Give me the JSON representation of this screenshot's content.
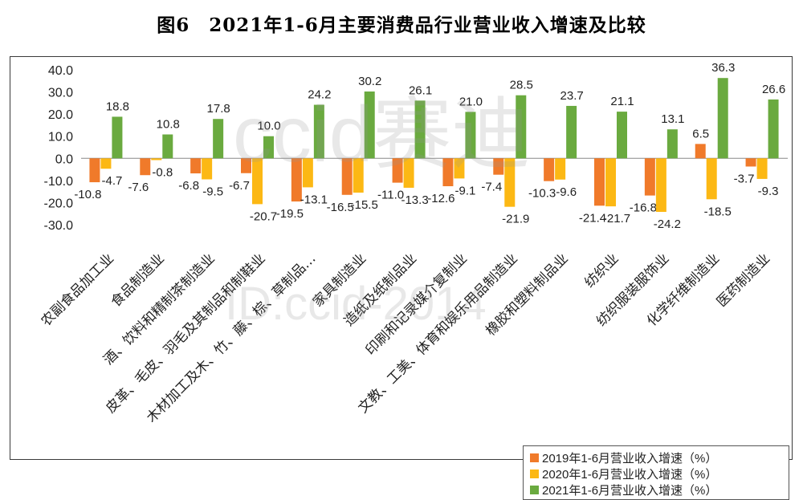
{
  "title": "图6　2021年1-6月主要消费品行业营业收入增速及比较",
  "watermark": {
    "main": "ccid赛迪",
    "sub": "ID:ccid-2014"
  },
  "colors": {
    "s2019": "#f07a2a",
    "s2020": "#fcb814",
    "s2021": "#6aaa3f",
    "axis": "#888888"
  },
  "chart_data": {
    "type": "bar",
    "title": "图6　2021年1-6月主要消费品行业营业收入增速及比较",
    "ylim": [
      -30,
      40
    ],
    "yticks": [
      "40.0",
      "30.0",
      "20.0",
      "10.0",
      "0.0",
      "-10.0",
      "-20.0",
      "-30.0"
    ],
    "grid": false,
    "legend_position": "bottom-right",
    "categories": [
      "农副食品加工业",
      "食品制造业",
      "酒、饮料和精制茶制造业",
      "皮革、毛皮、羽毛及其制品和制鞋业",
      "木材加工及木、竹、藤、棕、草制品…",
      "家具制造业",
      "造纸及纸制品业",
      "印刷和记录媒介复制业",
      "文教、工美、体育和娱乐用品制造业",
      "橡胶和塑料制品业",
      "纺织业",
      "纺织服装服饰业",
      "化学纤维制造业",
      "医药制造业"
    ],
    "series": [
      {
        "name": "2019年1-6月营业收入增速（%）",
        "values": [
          -10.8,
          -7.6,
          -6.8,
          -6.7,
          -19.5,
          -16.5,
          -11.0,
          -12.6,
          -7.4,
          -10.3,
          -21.4,
          -16.8,
          6.5,
          -3.7
        ]
      },
      {
        "name": "2020年1-6月营业收入增速（%）",
        "values": [
          -4.7,
          -0.8,
          -9.5,
          -20.7,
          -13.1,
          -15.5,
          -13.3,
          -9.1,
          -21.9,
          -9.6,
          -21.7,
          -24.2,
          -18.5,
          -9.3
        ]
      },
      {
        "name": "2021年1-6月营业收入增速（%）",
        "values": [
          18.8,
          10.8,
          17.8,
          10.0,
          24.2,
          30.2,
          26.1,
          21.0,
          28.5,
          23.7,
          21.1,
          13.1,
          36.3,
          26.6
        ]
      }
    ]
  }
}
